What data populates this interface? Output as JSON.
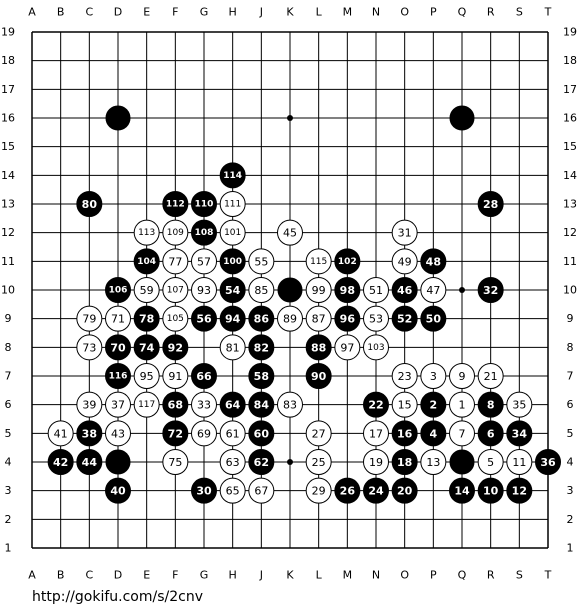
{
  "board": {
    "columns": [
      "A",
      "B",
      "C",
      "D",
      "E",
      "F",
      "G",
      "H",
      "J",
      "K",
      "L",
      "M",
      "N",
      "O",
      "P",
      "Q",
      "R",
      "S",
      "T"
    ],
    "rows": [
      19,
      18,
      17,
      16,
      15,
      14,
      13,
      12,
      11,
      10,
      9,
      8,
      7,
      6,
      5,
      4,
      3,
      2,
      1
    ],
    "stones": [
      {
        "col": "D",
        "row": 16,
        "color": "black"
      },
      {
        "col": "Q",
        "row": 16,
        "color": "black"
      },
      {
        "col": "K",
        "row": 10,
        "color": "black"
      },
      {
        "col": "D",
        "row": 4,
        "color": "black"
      },
      {
        "col": "Q",
        "row": 4,
        "color": "black"
      },
      {
        "col": "H",
        "row": 14,
        "color": "black",
        "number": 114
      },
      {
        "col": "C",
        "row": 13,
        "color": "black",
        "number": 80
      },
      {
        "col": "F",
        "row": 13,
        "color": "black",
        "number": 112
      },
      {
        "col": "G",
        "row": 13,
        "color": "black",
        "number": 110
      },
      {
        "col": "H",
        "row": 13,
        "color": "white",
        "number": 111
      },
      {
        "col": "R",
        "row": 13,
        "color": "black",
        "number": 28
      },
      {
        "col": "E",
        "row": 12,
        "color": "white",
        "number": 113
      },
      {
        "col": "F",
        "row": 12,
        "color": "white",
        "number": 109
      },
      {
        "col": "G",
        "row": 12,
        "color": "black",
        "number": 108
      },
      {
        "col": "H",
        "row": 12,
        "color": "white",
        "number": 101
      },
      {
        "col": "K",
        "row": 12,
        "color": "white",
        "number": 45
      },
      {
        "col": "O",
        "row": 12,
        "color": "white",
        "number": 31
      },
      {
        "col": "E",
        "row": 11,
        "color": "black",
        "number": 104
      },
      {
        "col": "F",
        "row": 11,
        "color": "white",
        "number": 77
      },
      {
        "col": "G",
        "row": 11,
        "color": "white",
        "number": 57
      },
      {
        "col": "H",
        "row": 11,
        "color": "black",
        "number": 100
      },
      {
        "col": "J",
        "row": 11,
        "color": "white",
        "number": 55
      },
      {
        "col": "L",
        "row": 11,
        "color": "white",
        "number": 115
      },
      {
        "col": "M",
        "row": 11,
        "color": "black",
        "number": 102
      },
      {
        "col": "O",
        "row": 11,
        "color": "white",
        "number": 49
      },
      {
        "col": "P",
        "row": 11,
        "color": "black",
        "number": 48
      },
      {
        "col": "D",
        "row": 10,
        "color": "black",
        "number": 106
      },
      {
        "col": "E",
        "row": 10,
        "color": "white",
        "number": 59
      },
      {
        "col": "F",
        "row": 10,
        "color": "white",
        "number": 107
      },
      {
        "col": "G",
        "row": 10,
        "color": "white",
        "number": 93
      },
      {
        "col": "H",
        "row": 10,
        "color": "black",
        "number": 54
      },
      {
        "col": "J",
        "row": 10,
        "color": "white",
        "number": 85
      },
      {
        "col": "L",
        "row": 10,
        "color": "white",
        "number": 99
      },
      {
        "col": "M",
        "row": 10,
        "color": "black",
        "number": 98
      },
      {
        "col": "N",
        "row": 10,
        "color": "white",
        "number": 51
      },
      {
        "col": "O",
        "row": 10,
        "color": "black",
        "number": 46
      },
      {
        "col": "P",
        "row": 10,
        "color": "white",
        "number": 47
      },
      {
        "col": "R",
        "row": 10,
        "color": "black",
        "number": 32
      },
      {
        "col": "C",
        "row": 9,
        "color": "white",
        "number": 79
      },
      {
        "col": "D",
        "row": 9,
        "color": "white",
        "number": 71
      },
      {
        "col": "E",
        "row": 9,
        "color": "black",
        "number": 78
      },
      {
        "col": "F",
        "row": 9,
        "color": "white",
        "number": 105
      },
      {
        "col": "G",
        "row": 9,
        "color": "black",
        "number": 56
      },
      {
        "col": "H",
        "row": 9,
        "color": "black",
        "number": 94
      },
      {
        "col": "J",
        "row": 9,
        "color": "black",
        "number": 86
      },
      {
        "col": "K",
        "row": 9,
        "color": "white",
        "number": 89
      },
      {
        "col": "L",
        "row": 9,
        "color": "white",
        "number": 87
      },
      {
        "col": "M",
        "row": 9,
        "color": "black",
        "number": 96
      },
      {
        "col": "N",
        "row": 9,
        "color": "white",
        "number": 53
      },
      {
        "col": "O",
        "row": 9,
        "color": "black",
        "number": 52
      },
      {
        "col": "P",
        "row": 9,
        "color": "black",
        "number": 50
      },
      {
        "col": "C",
        "row": 8,
        "color": "white",
        "number": 73
      },
      {
        "col": "D",
        "row": 8,
        "color": "black",
        "number": 70
      },
      {
        "col": "E",
        "row": 8,
        "color": "black",
        "number": 74
      },
      {
        "col": "F",
        "row": 8,
        "color": "black",
        "number": 92
      },
      {
        "col": "H",
        "row": 8,
        "color": "white",
        "number": 81
      },
      {
        "col": "J",
        "row": 8,
        "color": "black",
        "number": 82
      },
      {
        "col": "L",
        "row": 8,
        "color": "black",
        "number": 88
      },
      {
        "col": "M",
        "row": 8,
        "color": "white",
        "number": 97
      },
      {
        "col": "N",
        "row": 8,
        "color": "white",
        "number": 103
      },
      {
        "col": "D",
        "row": 7,
        "color": "black",
        "number": 116
      },
      {
        "col": "E",
        "row": 7,
        "color": "white",
        "number": 95
      },
      {
        "col": "F",
        "row": 7,
        "color": "white",
        "number": 91
      },
      {
        "col": "G",
        "row": 7,
        "color": "black",
        "number": 66
      },
      {
        "col": "J",
        "row": 7,
        "color": "black",
        "number": 58
      },
      {
        "col": "L",
        "row": 7,
        "color": "black",
        "number": 90
      },
      {
        "col": "O",
        "row": 7,
        "color": "white",
        "number": 23
      },
      {
        "col": "P",
        "row": 7,
        "color": "white",
        "number": 3
      },
      {
        "col": "Q",
        "row": 7,
        "color": "white",
        "number": 9
      },
      {
        "col": "R",
        "row": 7,
        "color": "white",
        "number": 21
      },
      {
        "col": "C",
        "row": 6,
        "color": "white",
        "number": 39
      },
      {
        "col": "D",
        "row": 6,
        "color": "white",
        "number": 37
      },
      {
        "col": "E",
        "row": 6,
        "color": "white",
        "number": 117
      },
      {
        "col": "F",
        "row": 6,
        "color": "black",
        "number": 68
      },
      {
        "col": "G",
        "row": 6,
        "color": "white",
        "number": 33
      },
      {
        "col": "H",
        "row": 6,
        "color": "black",
        "number": 64
      },
      {
        "col": "J",
        "row": 6,
        "color": "black",
        "number": 84
      },
      {
        "col": "K",
        "row": 6,
        "color": "white",
        "number": 83
      },
      {
        "col": "N",
        "row": 6,
        "color": "black",
        "number": 22
      },
      {
        "col": "O",
        "row": 6,
        "color": "white",
        "number": 15
      },
      {
        "col": "P",
        "row": 6,
        "color": "black",
        "number": 2
      },
      {
        "col": "Q",
        "row": 6,
        "color": "white",
        "number": 1
      },
      {
        "col": "R",
        "row": 6,
        "color": "black",
        "number": 8
      },
      {
        "col": "S",
        "row": 6,
        "color": "white",
        "number": 35
      },
      {
        "col": "B",
        "row": 5,
        "color": "white",
        "number": 41
      },
      {
        "col": "C",
        "row": 5,
        "color": "black",
        "number": 38
      },
      {
        "col": "D",
        "row": 5,
        "color": "white",
        "number": 43
      },
      {
        "col": "F",
        "row": 5,
        "color": "black",
        "number": 72
      },
      {
        "col": "G",
        "row": 5,
        "color": "white",
        "number": 69
      },
      {
        "col": "H",
        "row": 5,
        "color": "white",
        "number": 61
      },
      {
        "col": "J",
        "row": 5,
        "color": "black",
        "number": 60
      },
      {
        "col": "L",
        "row": 5,
        "color": "white",
        "number": 27
      },
      {
        "col": "N",
        "row": 5,
        "color": "white",
        "number": 17
      },
      {
        "col": "O",
        "row": 5,
        "color": "black",
        "number": 16
      },
      {
        "col": "P",
        "row": 5,
        "color": "black",
        "number": 4
      },
      {
        "col": "Q",
        "row": 5,
        "color": "white",
        "number": 7
      },
      {
        "col": "R",
        "row": 5,
        "color": "black",
        "number": 6
      },
      {
        "col": "S",
        "row": 5,
        "color": "black",
        "number": 34
      },
      {
        "col": "B",
        "row": 4,
        "color": "black",
        "number": 42
      },
      {
        "col": "C",
        "row": 4,
        "color": "black",
        "number": 44
      },
      {
        "col": "F",
        "row": 4,
        "color": "white",
        "number": 75
      },
      {
        "col": "H",
        "row": 4,
        "color": "white",
        "number": 63
      },
      {
        "col": "J",
        "row": 4,
        "color": "black",
        "number": 62
      },
      {
        "col": "L",
        "row": 4,
        "color": "white",
        "number": 25
      },
      {
        "col": "N",
        "row": 4,
        "color": "white",
        "number": 19
      },
      {
        "col": "O",
        "row": 4,
        "color": "black",
        "number": 18
      },
      {
        "col": "P",
        "row": 4,
        "color": "white",
        "number": 13
      },
      {
        "col": "R",
        "row": 4,
        "color": "white",
        "number": 5
      },
      {
        "col": "S",
        "row": 4,
        "color": "white",
        "number": 11
      },
      {
        "col": "T",
        "row": 4,
        "color": "black",
        "number": 36
      },
      {
        "col": "D",
        "row": 3,
        "color": "black",
        "number": 40
      },
      {
        "col": "G",
        "row": 3,
        "color": "black",
        "number": 30
      },
      {
        "col": "H",
        "row": 3,
        "color": "white",
        "number": 65
      },
      {
        "col": "J",
        "row": 3,
        "color": "white",
        "number": 67
      },
      {
        "col": "L",
        "row": 3,
        "color": "white",
        "number": 29
      },
      {
        "col": "M",
        "row": 3,
        "color": "black",
        "number": 26
      },
      {
        "col": "N",
        "row": 3,
        "color": "black",
        "number": 24
      },
      {
        "col": "O",
        "row": 3,
        "color": "black",
        "number": 20
      },
      {
        "col": "Q",
        "row": 3,
        "color": "black",
        "number": 14
      },
      {
        "col": "R",
        "row": 3,
        "color": "black",
        "number": 10
      },
      {
        "col": "S",
        "row": 3,
        "color": "black",
        "number": 12
      }
    ]
  },
  "footer": {
    "url": "http://gokifu.com/s/2cnv"
  }
}
